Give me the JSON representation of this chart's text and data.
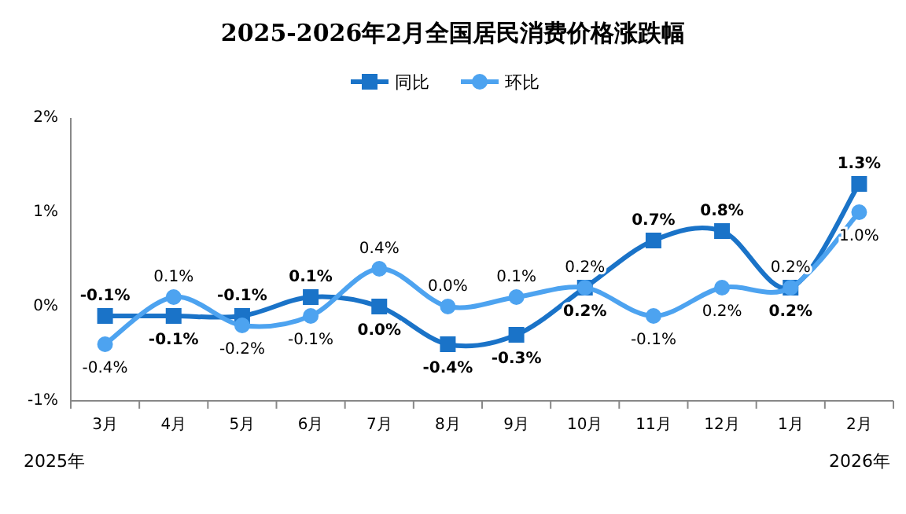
{
  "chart_data": {
    "type": "line",
    "title": "2025-2026年2月全国居民消费价格涨跌幅",
    "categories": [
      "3月",
      "4月",
      "5月",
      "6月",
      "7月",
      "8月",
      "9月",
      "10月",
      "11月",
      "12月",
      "1月",
      "2月"
    ],
    "series": [
      {
        "name": "同比",
        "color": "#1a73c8",
        "marker": "square",
        "values": [
          -0.1,
          -0.1,
          -0.1,
          0.1,
          0.0,
          -0.4,
          -0.3,
          0.2,
          0.7,
          0.8,
          0.2,
          1.3
        ],
        "value_labels": [
          "-0.1%",
          "-0.1%",
          "-0.1%",
          "0.1%",
          "0.0%",
          "-0.4%",
          "-0.3%",
          "0.2%",
          "0.7%",
          "0.8%",
          "0.2%",
          "1.3%"
        ]
      },
      {
        "name": "环比",
        "color": "#4da3f0",
        "marker": "circle",
        "values": [
          -0.4,
          0.1,
          -0.2,
          -0.1,
          0.4,
          0.0,
          0.1,
          0.2,
          -0.1,
          0.2,
          0.2,
          1.0
        ],
        "value_labels": [
          "-0.4%",
          "0.1%",
          "-0.2%",
          "-0.1%",
          "0.4%",
          "0.0%",
          "0.1%",
          "0.2%",
          "-0.1%",
          "0.2%",
          "0.2%",
          "1.0%"
        ]
      }
    ],
    "ylim": [
      -1,
      2
    ],
    "yticks": [
      {
        "value": -1,
        "label": "-1%"
      },
      {
        "value": 0,
        "label": "0%"
      },
      {
        "value": 1,
        "label": "1%"
      },
      {
        "value": 2,
        "label": "2%"
      }
    ],
    "grid": false,
    "legend": "top",
    "annotations": [
      "2025年",
      "2026年"
    ]
  }
}
